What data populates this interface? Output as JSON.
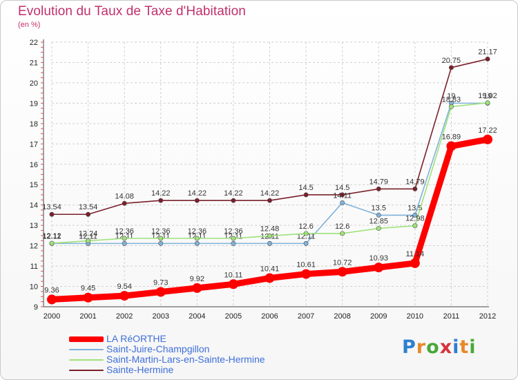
{
  "header": {
    "title": "Evolution du Taux de Taxe d'Habitation",
    "subtitle": "(en %)"
  },
  "logo": {
    "letters": [
      "P",
      "r",
      "o",
      "x",
      "i",
      "t",
      "i"
    ],
    "colors": [
      "#2f7fd0",
      "#e8892a",
      "#49a83b",
      "#d8333c",
      "#2f7fd0",
      "#e8892a",
      "#49a83b"
    ]
  },
  "chart_data": {
    "type": "line",
    "title": "Evolution du Taux de Taxe d'Habitation",
    "ylabel": "(en %)",
    "xlabel": "",
    "x": [
      "2000",
      "2001",
      "2002",
      "2003",
      "2004",
      "2005",
      "2006",
      "2007",
      "2008",
      "2009",
      "2010",
      "2011",
      "2012"
    ],
    "ylim": [
      9,
      22
    ],
    "yticks": [
      9,
      10,
      11,
      12,
      13,
      14,
      15,
      16,
      17,
      18,
      19,
      20,
      21,
      22
    ],
    "grid": "dashed",
    "legend": "bottom-left",
    "series": [
      {
        "name": "Sainte-Hermine",
        "color": "#7a1f2a",
        "values": [
          13.54,
          13.54,
          14.08,
          14.22,
          14.22,
          14.22,
          14.22,
          14.5,
          14.5,
          14.79,
          14.79,
          20.75,
          21.17
        ],
        "labels": [
          "13.54",
          "13.54",
          "14.08",
          "14.22",
          "14.22",
          "14.22",
          "14.22",
          "14.5",
          "14.5",
          "14.79",
          "14.79",
          "20.75",
          "21.17"
        ]
      },
      {
        "name": "Saint-Juire-Champgillon",
        "color": "#7fb1d9",
        "values": [
          12.11,
          12.11,
          12.11,
          12.11,
          12.11,
          12.11,
          12.11,
          12.11,
          14.11,
          13.5,
          13.5,
          19,
          19
        ],
        "labels": [
          "12.11",
          "12.11",
          "12.11",
          "12.11",
          "12.11",
          "12.11",
          "12.11",
          "12.11",
          "14.11",
          "13.5",
          "13.5",
          "19",
          "19"
        ]
      },
      {
        "name": "Saint-Martin-Lars-en-Sainte-Hermine",
        "color": "#9fe27a",
        "values": [
          12.12,
          12.24,
          12.36,
          12.36,
          12.36,
          12.36,
          12.48,
          12.6,
          12.6,
          12.85,
          12.98,
          18.83,
          19.02
        ],
        "labels": [
          "12.12",
          "12.24",
          "12.36",
          "12.36",
          "12.36",
          "12.36",
          "12.48",
          "12.6",
          "12.6",
          "12.85",
          "12.98",
          "18.83",
          "19.02"
        ]
      },
      {
        "name": "LA RéORTHE",
        "color": "#ff0000",
        "values": [
          9.36,
          9.45,
          9.54,
          9.73,
          9.92,
          10.11,
          10.41,
          10.61,
          10.72,
          10.93,
          11.14,
          16.89,
          17.22
        ],
        "labels": [
          "9.36",
          "9.45",
          "9.54",
          "9.73",
          "9.92",
          "10.11",
          "10.41",
          "10.61",
          "10.72",
          "10.93",
          "11.14",
          "16.89",
          "17.22"
        ]
      }
    ],
    "legend_order": [
      "LA RéORTHE",
      "Saint-Juire-Champgillon",
      "Saint-Martin-Lars-en-Sainte-Hermine",
      "Sainte-Hermine"
    ]
  }
}
